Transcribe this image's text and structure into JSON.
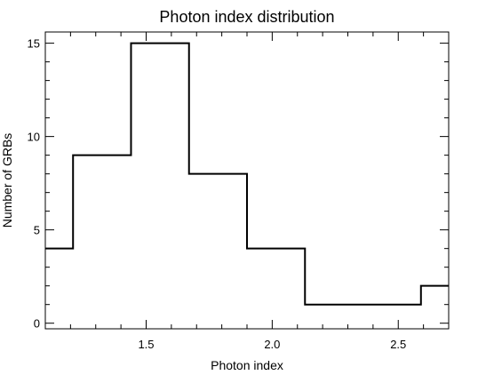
{
  "chart_data": {
    "type": "histogram",
    "title": "Photon index distribution",
    "xlabel": "Photon index",
    "ylabel": "Number of GRBs",
    "xlim": [
      1.1,
      2.7
    ],
    "ylim": [
      -0.3,
      15.6
    ],
    "x_ticks": [
      "1.5",
      "2.0",
      "2.5"
    ],
    "y_ticks": [
      "0",
      "5",
      "10",
      "15"
    ],
    "bin_edges": [
      1.1,
      1.21,
      1.44,
      1.67,
      1.9,
      2.13,
      2.36,
      2.59,
      2.7
    ],
    "counts": [
      4,
      9,
      15,
      8,
      4,
      1,
      1,
      2
    ],
    "grid": false,
    "line_color": "#000000"
  }
}
